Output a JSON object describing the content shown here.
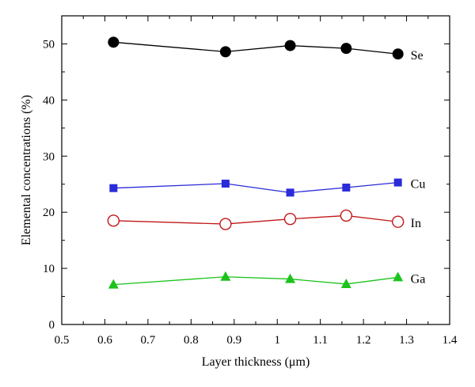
{
  "chart_data": {
    "type": "line",
    "xlabel": "Layer thickness (μm)",
    "ylabel": "Elemental concentrations (%)",
    "xlim": [
      0.5,
      1.4
    ],
    "ylim": [
      0,
      55
    ],
    "xticks": [
      "0.5",
      "0.6",
      "0.7",
      "0.8",
      "0.9",
      "1",
      "1.1",
      "1.2",
      "1.3",
      "1.4"
    ],
    "yticks": [
      "0",
      "10",
      "20",
      "30",
      "40",
      "50"
    ],
    "grid": false,
    "legend": "inline labels at right end of each series",
    "x": [
      0.62,
      0.88,
      1.03,
      1.16,
      1.28
    ],
    "series": [
      {
        "name": "Se",
        "values": [
          50.3,
          48.6,
          49.7,
          49.2,
          48.2
        ],
        "color": "#000000",
        "marker": "filled-circle"
      },
      {
        "name": "Cu",
        "values": [
          24.3,
          25.1,
          23.5,
          24.4,
          25.3
        ],
        "color": "#2b2bd9",
        "marker": "filled-square"
      },
      {
        "name": "In",
        "values": [
          18.5,
          17.9,
          18.8,
          19.4,
          18.3
        ],
        "color": "#c01818",
        "marker": "open-circle"
      },
      {
        "name": "Ga",
        "values": [
          7.1,
          8.5,
          8.1,
          7.2,
          8.4
        ],
        "color": "#1bc31b",
        "marker": "filled-triangle"
      }
    ]
  }
}
